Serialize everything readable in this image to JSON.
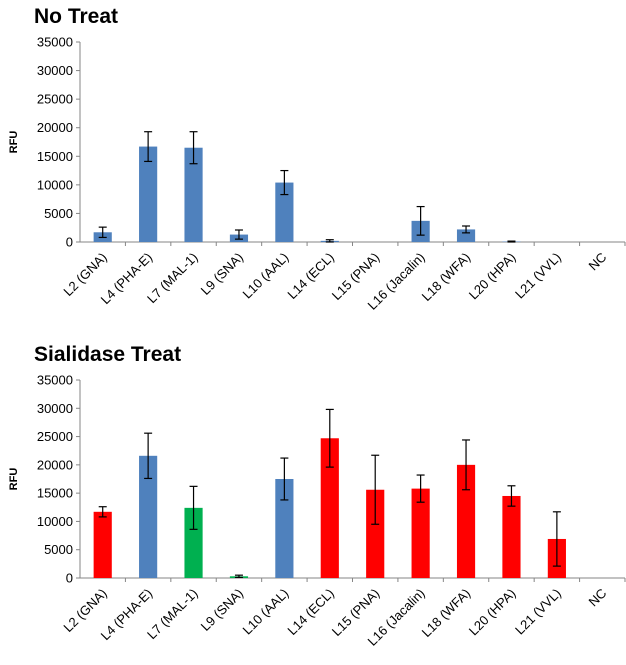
{
  "chart_data": [
    {
      "type": "bar",
      "title": "No Treat",
      "ylabel": "RFU",
      "xlabel": "",
      "ylim": [
        0,
        35000
      ],
      "yticks": [
        0,
        5000,
        10000,
        15000,
        20000,
        25000,
        30000,
        35000
      ],
      "categories": [
        "L2 (GNA)",
        "L4 (PHA-E)",
        "L7 (MAL-1)",
        "L9 (SNA)",
        "L10 (AAL)",
        "L14 (ECL)",
        "L15 (PNA)",
        "L16 (Jacalin)",
        "L18 (WFA)",
        "L20 (HPA)",
        "L21 (VVL)",
        "NC"
      ],
      "values": [
        1700,
        16700,
        16500,
        1300,
        10400,
        200,
        0,
        3700,
        2200,
        80,
        0,
        0
      ],
      "errors": [
        900,
        2600,
        2800,
        800,
        2100,
        200,
        0,
        2500,
        600,
        80,
        0,
        0
      ],
      "colors": [
        "#4f81bd",
        "#4f81bd",
        "#4f81bd",
        "#4f81bd",
        "#4f81bd",
        "#4f81bd",
        "#4f81bd",
        "#4f81bd",
        "#4f81bd",
        "#4f81bd",
        "#4f81bd",
        "#4f81bd"
      ]
    },
    {
      "type": "bar",
      "title": "Sialidase Treat",
      "ylabel": "RFU",
      "xlabel": "",
      "ylim": [
        0,
        35000
      ],
      "yticks": [
        0,
        5000,
        10000,
        15000,
        20000,
        25000,
        30000,
        35000
      ],
      "categories": [
        "L2 (GNA)",
        "L4 (PHA-E)",
        "L7 (MAL-1)",
        "L9 (SNA)",
        "L10 (AAL)",
        "L14 (ECL)",
        "L15 (PNA)",
        "L16 (Jacalin)",
        "L18 (WFA)",
        "L20 (HPA)",
        "L21 (VVL)",
        "NC"
      ],
      "values": [
        11700,
        21600,
        12400,
        300,
        17500,
        24700,
        15600,
        15800,
        20000,
        14500,
        6900,
        0
      ],
      "errors": [
        900,
        4000,
        3800,
        200,
        3700,
        5100,
        6100,
        2400,
        4400,
        1800,
        4800,
        0
      ],
      "colors": [
        "#ff0000",
        "#4f81bd",
        "#00b050",
        "#00b050",
        "#4f81bd",
        "#ff0000",
        "#ff0000",
        "#ff0000",
        "#ff0000",
        "#ff0000",
        "#ff0000",
        "#ff0000"
      ]
    }
  ]
}
